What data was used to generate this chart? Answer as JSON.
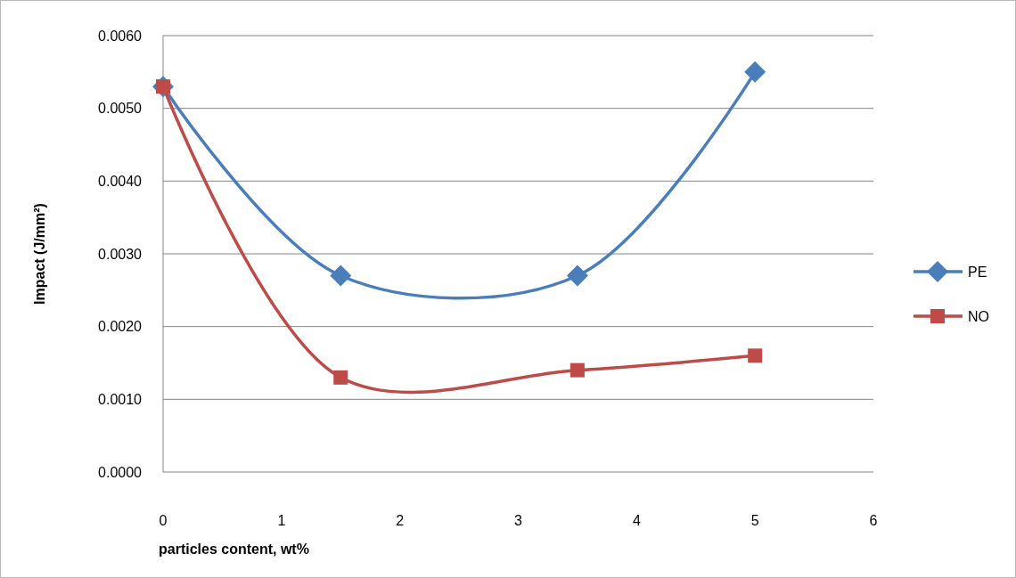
{
  "chart_data": {
    "type": "line",
    "xlabel": "particles content, wt%",
    "ylabel": "Impact (J/mm²)",
    "xlim": [
      0,
      6
    ],
    "xticks": [
      0,
      1,
      2,
      3,
      4,
      5,
      6
    ],
    "ylim": [
      0,
      0.006
    ],
    "yticks": [
      {
        "value": 0,
        "label": "0.0000"
      },
      {
        "value": 0.001,
        "label": "0.0010"
      },
      {
        "value": 0.002,
        "label": "0.0020"
      },
      {
        "value": 0.003,
        "label": "0.0030"
      },
      {
        "value": 0.004,
        "label": "0.0040"
      },
      {
        "value": 0.005,
        "label": "0.0050"
      },
      {
        "value": 0.006,
        "label": "0.0060"
      }
    ],
    "grid": "y",
    "legend": "right",
    "series": [
      {
        "name": "PE",
        "color": "#4a7ebb",
        "marker": "diamond",
        "x": [
          0,
          1.5,
          3.5,
          5
        ],
        "values": [
          0.0053,
          0.0027,
          0.0027,
          0.0055
        ]
      },
      {
        "name": "NO",
        "color": "#be4b48",
        "marker": "square",
        "x": [
          0,
          1.5,
          3.5,
          5
        ],
        "values": [
          0.0053,
          0.0013,
          0.0014,
          0.0016
        ]
      }
    ]
  }
}
